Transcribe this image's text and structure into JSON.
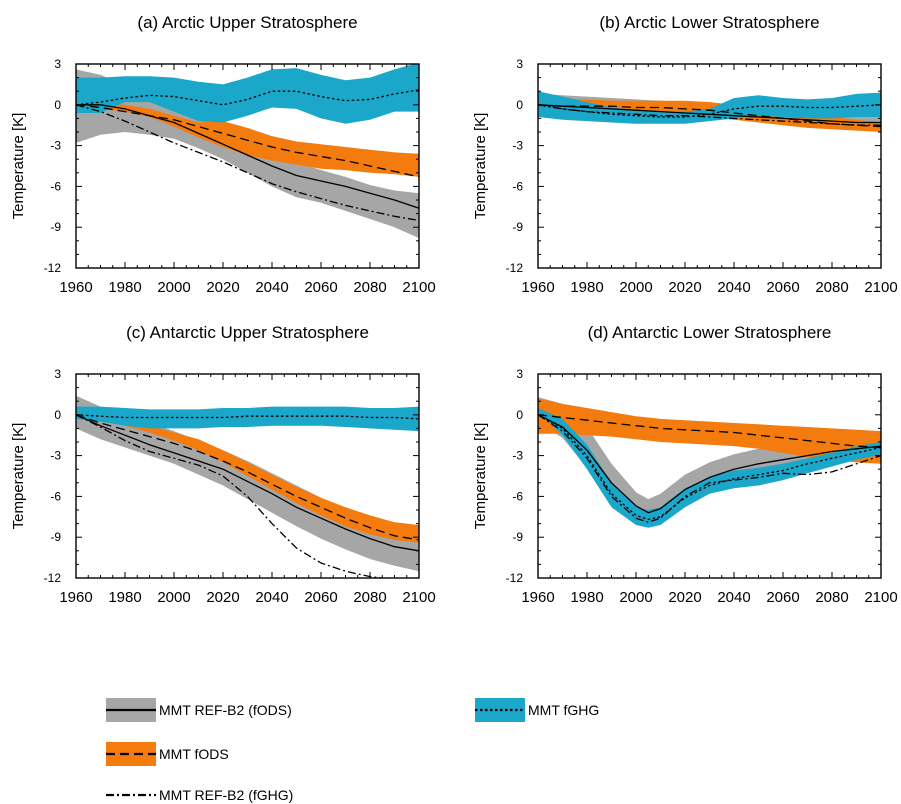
{
  "chart_data": [
    {
      "type": "line",
      "title": "(a) Arctic Upper Stratosphere",
      "xlabel": "",
      "ylabel": "Temperature [K]",
      "xlim": [
        1960,
        2100
      ],
      "ylim": [
        -12,
        3
      ],
      "xticks": [
        1960,
        1980,
        2000,
        2020,
        2040,
        2060,
        2080,
        2100
      ],
      "yticks": [
        3,
        0,
        -3,
        -6,
        -9,
        -12
      ],
      "x": [
        1960,
        1970,
        1980,
        1990,
        2000,
        2010,
        2020,
        2030,
        2040,
        2050,
        2060,
        2070,
        2080,
        2090,
        2100
      ],
      "bands": [
        {
          "name": "REF-B2 (fODS)",
          "color": "#a6a6a6",
          "lower": [
            -2.8,
            -2.2,
            -2.0,
            -2.2,
            -2.5,
            -3.2,
            -4.0,
            -5.0,
            -6.0,
            -6.8,
            -7.2,
            -7.8,
            -8.4,
            -9.0,
            -9.8
          ],
          "upper": [
            2.6,
            2.2,
            1.5,
            0.7,
            0.0,
            -0.8,
            -1.4,
            -2.4,
            -3.4,
            -4.2,
            -4.8,
            -5.3,
            -5.9,
            -6.3,
            -6.5
          ]
        },
        {
          "name": "fODS",
          "color": "#f47c0e",
          "lower": [
            -0.2,
            -0.3,
            -0.5,
            -0.9,
            -1.6,
            -2.4,
            -3.1,
            -3.7,
            -4.1,
            -4.4,
            -4.7,
            -4.8,
            -5.0,
            -5.1,
            -5.3
          ],
          "upper": [
            0.1,
            0.1,
            0.0,
            -0.3,
            -0.8,
            -1.3,
            -1.2,
            -1.7,
            -2.3,
            -2.7,
            -2.9,
            -3.1,
            -3.3,
            -3.5,
            -3.6
          ]
        },
        {
          "name": "fGHG",
          "color": "#1aa7c9",
          "lower": [
            -0.6,
            -0.6,
            0.2,
            0.2,
            -0.5,
            -1.2,
            -1.3,
            -0.8,
            -0.2,
            -0.3,
            -1.0,
            -1.4,
            -1.1,
            -0.5,
            -0.5
          ],
          "upper": [
            2.0,
            2.0,
            2.1,
            2.1,
            2.0,
            1.7,
            1.5,
            2.0,
            2.6,
            2.7,
            2.2,
            1.8,
            2.0,
            2.6,
            3.1
          ]
        }
      ],
      "lines": [
        {
          "name": "REF-B2 (fODS)",
          "style": "solid",
          "values": [
            0.0,
            0.0,
            -0.3,
            -0.8,
            -1.3,
            -2.1,
            -2.9,
            -3.7,
            -4.5,
            -5.2,
            -5.6,
            -6.0,
            -6.5,
            -7.0,
            -7.6
          ]
        },
        {
          "name": "fODS",
          "style": "dashed",
          "values": [
            0.0,
            -0.2,
            -0.5,
            -0.8,
            -1.1,
            -1.6,
            -2.1,
            -2.6,
            -3.1,
            -3.5,
            -3.8,
            -4.1,
            -4.5,
            -4.9,
            -5.3
          ]
        },
        {
          "name": "fGHG",
          "style": "dotted",
          "values": [
            0.0,
            0.2,
            0.5,
            0.7,
            0.6,
            0.3,
            0.0,
            0.4,
            1.0,
            1.0,
            0.6,
            0.3,
            0.4,
            0.8,
            1.1
          ]
        },
        {
          "name": "REF-B2 (fGHG)",
          "style": "dashdot",
          "values": [
            0.0,
            -0.5,
            -1.2,
            -2.0,
            -2.8,
            -3.5,
            -4.2,
            -5.0,
            -5.8,
            -6.4,
            -6.9,
            -7.4,
            -7.8,
            -8.2,
            -8.5
          ]
        }
      ]
    },
    {
      "type": "line",
      "title": "(b) Arctic Lower Stratosphere",
      "xlabel": "",
      "ylabel": "Temperature [K]",
      "xlim": [
        1960,
        2100
      ],
      "ylim": [
        -12,
        3
      ],
      "xticks": [
        1960,
        1980,
        2000,
        2020,
        2040,
        2060,
        2080,
        2100
      ],
      "yticks": [
        3,
        0,
        -3,
        -6,
        -9,
        -12
      ],
      "x": [
        1960,
        1970,
        1980,
        1990,
        2000,
        2010,
        2020,
        2030,
        2040,
        2050,
        2060,
        2070,
        2080,
        2090,
        2100
      ],
      "bands": [
        {
          "name": "REF-B2 (fODS)",
          "color": "#a6a6a6",
          "lower": [
            -0.9,
            -0.9,
            -0.9,
            -0.9,
            -1.0,
            -1.0,
            -1.0,
            -1.0,
            -1.1,
            -1.2,
            -1.3,
            -1.4,
            -1.5,
            -1.6,
            -1.7
          ],
          "upper": [
            0.8,
            0.7,
            0.6,
            0.5,
            0.4,
            0.3,
            0.2,
            0.1,
            0.0,
            -0.1,
            -0.2,
            -0.3,
            -0.4,
            -0.5,
            -0.6
          ]
        },
        {
          "name": "fODS",
          "color": "#f47c0e",
          "lower": [
            -0.4,
            -0.4,
            -0.4,
            -0.4,
            -0.5,
            -0.5,
            -0.7,
            -0.9,
            -1.1,
            -1.3,
            -1.5,
            -1.7,
            -1.8,
            -1.9,
            -2.0
          ],
          "upper": [
            0.4,
            0.4,
            0.4,
            0.3,
            0.3,
            0.3,
            0.3,
            0.2,
            0.0,
            -0.3,
            -0.5,
            -0.7,
            -0.9,
            -1.1,
            -1.3
          ]
        },
        {
          "name": "fGHG",
          "color": "#1aa7c9",
          "lower": [
            -0.9,
            -1.1,
            -1.2,
            -1.3,
            -1.4,
            -1.4,
            -1.4,
            -1.2,
            -1.0,
            -0.8,
            -0.9,
            -1.0,
            -1.0,
            -0.9,
            -0.9
          ],
          "upper": [
            1.0,
            0.6,
            0.2,
            -0.2,
            -0.4,
            -0.5,
            -0.5,
            -0.3,
            0.5,
            0.7,
            0.5,
            0.4,
            0.5,
            0.8,
            0.9
          ]
        }
      ],
      "lines": [
        {
          "name": "REF-B2 (fODS)",
          "style": "solid",
          "values": [
            0.0,
            -0.1,
            -0.2,
            -0.3,
            -0.4,
            -0.5,
            -0.6,
            -0.7,
            -0.8,
            -0.9,
            -1.0,
            -1.1,
            -1.2,
            -1.3,
            -1.3
          ]
        },
        {
          "name": "fODS",
          "style": "dashed",
          "values": [
            0.0,
            -0.1,
            -0.1,
            -0.1,
            -0.2,
            -0.2,
            -0.3,
            -0.4,
            -0.6,
            -0.8,
            -1.0,
            -1.2,
            -1.4,
            -1.5,
            -1.6
          ]
        },
        {
          "name": "fGHG",
          "style": "dotted",
          "values": [
            0.0,
            -0.3,
            -0.5,
            -0.7,
            -0.8,
            -0.9,
            -0.9,
            -0.7,
            -0.3,
            -0.1,
            -0.1,
            -0.2,
            -0.2,
            -0.1,
            0.0
          ]
        },
        {
          "name": "REF-B2 (fGHG)",
          "style": "dashdot",
          "values": [
            0.0,
            -0.3,
            -0.5,
            -0.6,
            -0.7,
            -0.8,
            -0.8,
            -0.9,
            -1.0,
            -1.1,
            -1.2,
            -1.3,
            -1.4,
            -1.5,
            -1.5
          ]
        }
      ]
    },
    {
      "type": "line",
      "title": "(c) Antarctic Upper Stratosphere",
      "xlabel": "",
      "ylabel": "Temperature [K]",
      "xlim": [
        1960,
        2100
      ],
      "ylim": [
        -12,
        3
      ],
      "xticks": [
        1960,
        1980,
        2000,
        2020,
        2040,
        2060,
        2080,
        2100
      ],
      "yticks": [
        3,
        0,
        -3,
        -6,
        -9,
        -12
      ],
      "x": [
        1960,
        1970,
        1980,
        1990,
        2000,
        2010,
        2020,
        2030,
        2040,
        2050,
        2060,
        2070,
        2080,
        2090,
        2100
      ],
      "bands": [
        {
          "name": "REF-B2 (fODS)",
          "color": "#a6a6a6",
          "lower": [
            -1.0,
            -1.8,
            -2.4,
            -3.0,
            -3.6,
            -4.4,
            -5.2,
            -6.2,
            -7.2,
            -8.2,
            -9.1,
            -9.9,
            -10.6,
            -11.1,
            -11.5
          ],
          "upper": [
            1.4,
            0.6,
            0.0,
            -0.6,
            -1.2,
            -1.9,
            -2.6,
            -3.4,
            -4.3,
            -5.2,
            -6.1,
            -7.0,
            -7.8,
            -8.5,
            -9.0
          ]
        },
        {
          "name": "fODS",
          "color": "#f47c0e",
          "lower": [
            -0.1,
            -0.4,
            -0.8,
            -1.3,
            -1.9,
            -2.6,
            -3.5,
            -4.5,
            -5.5,
            -6.5,
            -7.4,
            -8.2,
            -8.8,
            -9.2,
            -9.4
          ],
          "upper": [
            0.1,
            -0.2,
            -0.5,
            -0.8,
            -1.3,
            -1.8,
            -2.6,
            -3.5,
            -4.4,
            -5.3,
            -6.1,
            -6.8,
            -7.4,
            -7.9,
            -8.1
          ]
        },
        {
          "name": "fGHG",
          "color": "#1aa7c9",
          "lower": [
            -0.3,
            -0.5,
            -0.8,
            -1.0,
            -1.0,
            -1.0,
            -0.9,
            -0.9,
            -0.8,
            -0.8,
            -0.8,
            -0.9,
            -1.0,
            -1.1,
            -1.2
          ],
          "upper": [
            0.6,
            0.6,
            0.5,
            0.4,
            0.4,
            0.4,
            0.5,
            0.5,
            0.6,
            0.6,
            0.6,
            0.6,
            0.5,
            0.5,
            0.6
          ]
        }
      ],
      "lines": [
        {
          "name": "REF-B2 (fODS)",
          "style": "solid",
          "values": [
            0.0,
            -0.8,
            -1.5,
            -2.2,
            -2.8,
            -3.4,
            -4.0,
            -4.9,
            -5.8,
            -6.8,
            -7.6,
            -8.4,
            -9.1,
            -9.7,
            -10.0
          ]
        },
        {
          "name": "fODS",
          "style": "dashed",
          "values": [
            0.0,
            -0.6,
            -1.1,
            -1.6,
            -2.1,
            -2.7,
            -3.4,
            -4.2,
            -5.1,
            -6.0,
            -6.8,
            -7.6,
            -8.3,
            -8.9,
            -9.2
          ]
        },
        {
          "name": "fGHG",
          "style": "dotted",
          "values": [
            0.0,
            -0.1,
            -0.2,
            -0.2,
            -0.2,
            -0.2,
            -0.2,
            -0.1,
            -0.1,
            -0.1,
            -0.1,
            -0.1,
            -0.2,
            -0.2,
            -0.3
          ]
        },
        {
          "name": "REF-B2 (fGHG)",
          "style": "dashdot",
          "values": [
            0.0,
            -0.9,
            -1.9,
            -2.7,
            -3.2,
            -3.7,
            -4.5,
            -6.0,
            -8.0,
            -9.8,
            -10.9,
            -11.5,
            -11.9,
            -12.1,
            -12.2
          ]
        }
      ]
    },
    {
      "type": "line",
      "title": "(d) Antarctic Lower Stratosphere",
      "xlabel": "",
      "ylabel": "Temperature [K]",
      "xlim": [
        1960,
        2100
      ],
      "ylim": [
        -12,
        3
      ],
      "xticks": [
        1960,
        1980,
        2000,
        2020,
        2040,
        2060,
        2080,
        2100
      ],
      "yticks": [
        3,
        0,
        -3,
        -6,
        -9,
        -12
      ],
      "x": [
        1960,
        1970,
        1980,
        1990,
        2000,
        2005,
        2010,
        2020,
        2030,
        2040,
        2050,
        2060,
        2070,
        2080,
        2090,
        2100
      ],
      "bands": [
        {
          "name": "REF-B2 (fODS)",
          "color": "#a6a6a6",
          "lower": [
            -0.6,
            -1.7,
            -3.9,
            -6.3,
            -7.6,
            -7.9,
            -7.6,
            -6.1,
            -5.2,
            -4.6,
            -4.2,
            -3.8,
            -3.5,
            -3.2,
            -3.0,
            -2.8
          ],
          "upper": [
            1.3,
            0.8,
            -0.9,
            -3.6,
            -5.7,
            -6.2,
            -5.8,
            -4.4,
            -3.5,
            -2.9,
            -2.5,
            -2.1,
            -1.8,
            -1.6,
            -1.5,
            -1.4
          ]
        },
        {
          "name": "fODS",
          "color": "#f47c0e",
          "lower": [
            -1.4,
            -1.4,
            -1.5,
            -1.6,
            -1.8,
            -1.9,
            -2.0,
            -2.1,
            -2.2,
            -2.3,
            -2.5,
            -2.8,
            -3.1,
            -3.3,
            -3.5,
            -3.6
          ],
          "upper": [
            1.2,
            0.8,
            0.5,
            0.2,
            -0.1,
            -0.2,
            -0.3,
            -0.4,
            -0.5,
            -0.6,
            -0.7,
            -0.8,
            -0.9,
            -1.0,
            -1.1,
            -1.2
          ]
        },
        {
          "name": "fGHG",
          "color": "#1aa7c9",
          "lower": [
            0.2,
            -1.5,
            -4.0,
            -6.8,
            -8.1,
            -8.3,
            -8.1,
            -6.8,
            -5.8,
            -5.4,
            -5.2,
            -4.8,
            -4.3,
            -3.8,
            -3.3,
            -2.9
          ],
          "upper": [
            0.5,
            -0.3,
            -2.2,
            -5.0,
            -6.8,
            -7.0,
            -6.8,
            -5.4,
            -4.6,
            -4.1,
            -3.9,
            -3.6,
            -3.2,
            -2.8,
            -2.3,
            -2.0
          ]
        }
      ],
      "lines": [
        {
          "name": "REF-B2 (fODS)",
          "style": "solid",
          "values": [
            0.0,
            -0.9,
            -2.6,
            -5.0,
            -6.7,
            -7.2,
            -6.9,
            -5.5,
            -4.6,
            -4.0,
            -3.6,
            -3.3,
            -3.0,
            -2.7,
            -2.5,
            -2.3
          ]
        },
        {
          "name": "fODS",
          "style": "dashed",
          "values": [
            0.0,
            -0.2,
            -0.4,
            -0.6,
            -0.8,
            -0.9,
            -1.0,
            -1.1,
            -1.2,
            -1.3,
            -1.5,
            -1.7,
            -1.9,
            -2.1,
            -2.3,
            -2.4
          ]
        },
        {
          "name": "fGHG",
          "style": "dotted",
          "values": [
            0.0,
            -1.0,
            -3.0,
            -5.8,
            -7.4,
            -7.7,
            -7.5,
            -6.1,
            -5.2,
            -4.7,
            -4.4,
            -4.1,
            -3.6,
            -3.2,
            -2.8,
            -2.4
          ]
        },
        {
          "name": "REF-B2 (fGHG)",
          "style": "dashdot",
          "values": [
            0.0,
            -1.2,
            -3.2,
            -6.0,
            -7.6,
            -7.9,
            -7.6,
            -6.0,
            -5.0,
            -4.8,
            -4.6,
            -4.3,
            -4.4,
            -4.2,
            -3.6,
            -3.0
          ]
        }
      ]
    }
  ],
  "legend": {
    "items": [
      {
        "label": "MMT  REF-B2 (fODS)",
        "band_color": "#a6a6a6",
        "line_style": "solid"
      },
      {
        "label": "MMT  fODS",
        "band_color": "#f47c0e",
        "line_style": "dashed"
      },
      {
        "label": "MMT  REF-B2 (fGHG)",
        "band_color": "",
        "line_style": "dashdot"
      },
      {
        "label": "MMT  fGHG",
        "band_color": "#1aa7c9",
        "line_style": "dotted"
      }
    ]
  }
}
